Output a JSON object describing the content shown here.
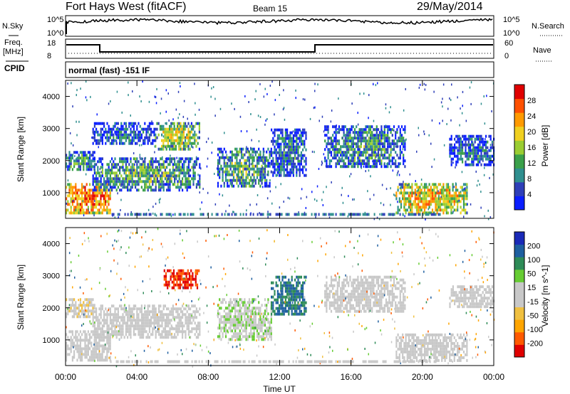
{
  "header": {
    "title": "Fort Hays West (fitACF)",
    "beam": "Beam 15",
    "date": "29/May/2014"
  },
  "nsky_panel": {
    "left_label": "N.Sky",
    "right_label": "N.Search",
    "left_ticks": [
      "10^5",
      "10^0"
    ],
    "right_ticks": [
      "10^5",
      "10^0"
    ]
  },
  "freq_panel": {
    "left_label_1": "Freq.",
    "left_label_2": "[MHz]",
    "right_label": "Nave",
    "left_ticks": [
      "18",
      "8"
    ],
    "right_ticks": [
      "60",
      "0"
    ]
  },
  "cpid": {
    "label": "CPID",
    "value": "normal (fast) -151 IF"
  },
  "colors": {
    "power": [
      "#0a1eff",
      "#2e3fb8",
      "#2f8f8f",
      "#3aa04a",
      "#9acd32",
      "#f0d020",
      "#ff9a00",
      "#ff5000",
      "#e00000"
    ],
    "velocity": [
      "#e00000",
      "#ff5a00",
      "#ffa500",
      "#f0c040",
      "#c8c8c8",
      "#c8c8c8",
      "#66cc33",
      "#2e8b57",
      "#1e5fa0",
      "#1a2ab8"
    ]
  },
  "chart_data": [
    {
      "type": "heatmap",
      "panel": "power",
      "ylabel": "Slant Range [km]",
      "yticks": [
        "1000",
        "2000",
        "3000",
        "4000"
      ],
      "ylim": [
        200,
        4500
      ],
      "xlim": [
        0,
        24
      ],
      "colorbar_label": "Power [dB]",
      "colorbar_ticks": [
        "28",
        "24",
        "20",
        "16",
        "12",
        "8",
        "4"
      ],
      "clim": [
        0,
        30
      ],
      "regions": [
        {
          "t0": 0.0,
          "t1": 2.5,
          "r0": 400,
          "r1": 1300,
          "level": 24
        },
        {
          "t0": 0.0,
          "t1": 1.6,
          "r0": 1700,
          "r1": 2300,
          "level": 10
        },
        {
          "t0": 1.5,
          "t1": 7.5,
          "r0": 1100,
          "r1": 2100,
          "level": 12
        },
        {
          "t0": 1.5,
          "t1": 5.0,
          "r0": 2500,
          "r1": 3200,
          "level": 6
        },
        {
          "t0": 5.0,
          "t1": 7.5,
          "r0": 2400,
          "r1": 3200,
          "level": 16
        },
        {
          "t0": 8.5,
          "t1": 11.5,
          "r0": 1200,
          "r1": 2400,
          "level": 12
        },
        {
          "t0": 11.5,
          "t1": 13.5,
          "r0": 1500,
          "r1": 3000,
          "level": 8
        },
        {
          "t0": 14.5,
          "t1": 19.0,
          "r0": 1800,
          "r1": 3100,
          "level": 10
        },
        {
          "t0": 18.5,
          "t1": 22.5,
          "r0": 400,
          "r1": 1300,
          "level": 20
        },
        {
          "t0": 21.5,
          "t1": 24.0,
          "r0": 1900,
          "r1": 2800,
          "level": 8
        }
      ]
    },
    {
      "type": "heatmap",
      "panel": "velocity",
      "ylabel": "Slant Range [km]",
      "yticks": [
        "1000",
        "2000",
        "3000",
        "4000"
      ],
      "ylim": [
        200,
        4500
      ],
      "xlim": [
        0,
        24
      ],
      "xlabel": "Time UT",
      "xticks": [
        "00:00",
        "04:00",
        "08:00",
        "12:00",
        "16:00",
        "20:00",
        "00:00"
      ],
      "colorbar_label": "Velocity [m s^-1]",
      "colorbar_ticks": [
        "200",
        "100",
        "50",
        "15",
        "-15",
        "-50",
        "-100",
        "-200"
      ],
      "clim": [
        -250,
        250
      ],
      "regions": [
        {
          "t0": 0.0,
          "t1": 2.5,
          "r0": 400,
          "r1": 1300,
          "level": 0
        },
        {
          "t0": 0.0,
          "t1": 1.6,
          "r0": 1700,
          "r1": 2300,
          "level": -40
        },
        {
          "t0": 1.5,
          "t1": 7.5,
          "r0": 1100,
          "r1": 2100,
          "level": 0
        },
        {
          "t0": 5.5,
          "t1": 7.5,
          "r0": 2600,
          "r1": 3200,
          "level": -200
        },
        {
          "t0": 8.5,
          "t1": 11.5,
          "r0": 1000,
          "r1": 2300,
          "level": 40
        },
        {
          "t0": 11.5,
          "t1": 13.5,
          "r0": 1800,
          "r1": 3000,
          "level": 150
        },
        {
          "t0": 14.5,
          "t1": 19.0,
          "r0": 1900,
          "r1": 3000,
          "level": 0
        },
        {
          "t0": 18.5,
          "t1": 22.5,
          "r0": 400,
          "r1": 1200,
          "level": 0
        },
        {
          "t0": 21.5,
          "t1": 24.0,
          "r0": 2000,
          "r1": 2700,
          "level": 0
        }
      ]
    }
  ],
  "xaxis": {
    "label": "Time UT",
    "ticks": [
      "00:00",
      "04:00",
      "08:00",
      "12:00",
      "16:00",
      "20:00",
      "00:00"
    ]
  }
}
